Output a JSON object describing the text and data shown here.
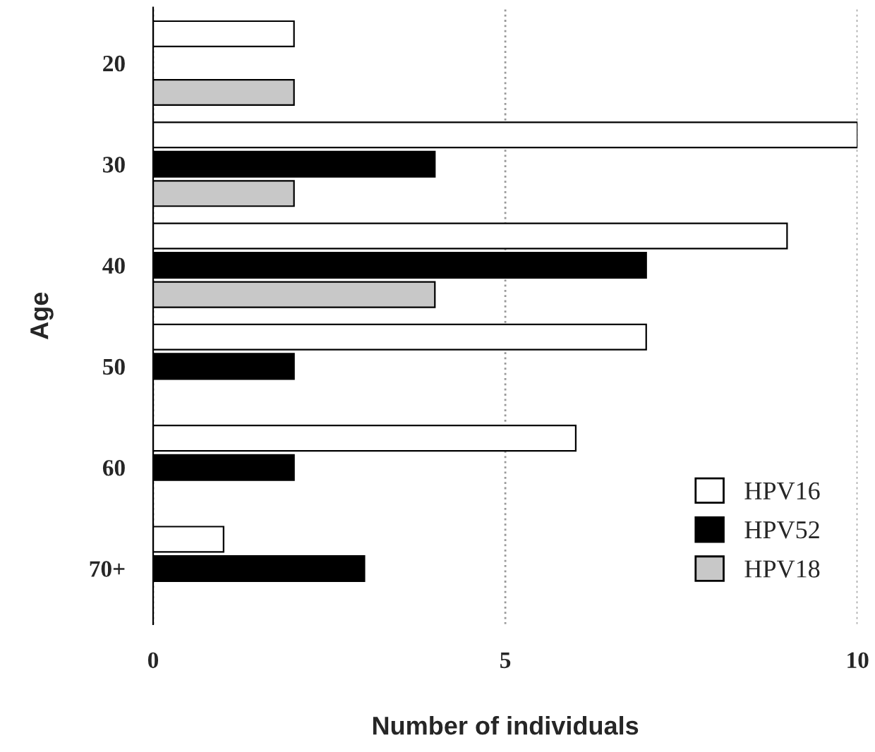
{
  "chart_data": {
    "type": "bar",
    "orientation": "horizontal",
    "xlabel": "Number of individuals",
    "ylabel": "Age",
    "categories": [
      "20",
      "30",
      "40",
      "50",
      "60",
      "70+"
    ],
    "series": [
      {
        "name": "HPV16",
        "color": "#ffffff",
        "values": [
          2,
          10,
          9,
          7,
          6,
          1
        ]
      },
      {
        "name": "HPV52",
        "color": "#000000",
        "values": [
          null,
          4,
          7,
          2,
          2,
          3
        ]
      },
      {
        "name": "HPV18",
        "color": "#c8c8c8",
        "values": [
          2,
          2,
          4,
          null,
          null,
          null
        ]
      }
    ],
    "xlim": [
      0,
      10
    ],
    "xticks": [
      0,
      5,
      10
    ],
    "grid": "x",
    "legend": "bottom right"
  }
}
